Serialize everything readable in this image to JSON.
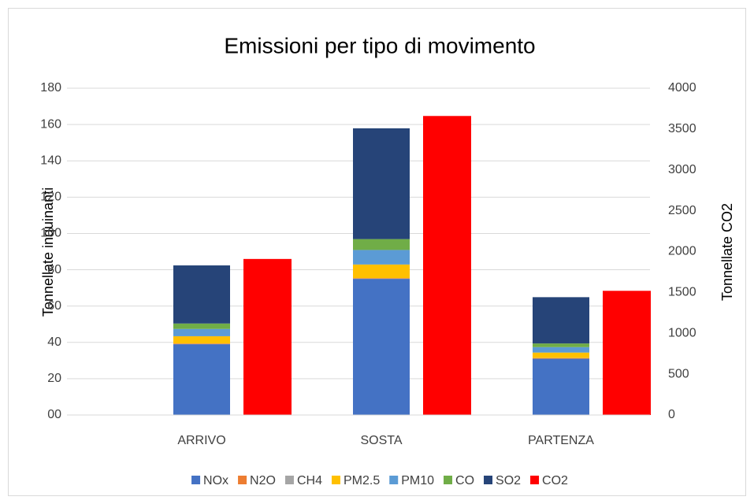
{
  "chart_data": {
    "type": "stacked_bar",
    "title": "Emissioni per tipo di movimento",
    "y_label": "Tonnellate inquinanti",
    "y2_label": "Tonnellate CO2",
    "categories": [
      "ARRIVO",
      "SOSTA",
      "PARTENZA"
    ],
    "series": [
      {
        "name": "NOx",
        "color": "#4472c4",
        "values": [
          39,
          75,
          31
        ]
      },
      {
        "name": "N2O",
        "color": "#ed7d31",
        "values": [
          0.3,
          0.3,
          0.3
        ]
      },
      {
        "name": "CH4",
        "color": "#a5a5a5",
        "values": [
          0.1,
          0.1,
          0.1
        ]
      },
      {
        "name": "PM2.5",
        "color": "#ffc000",
        "values": [
          4,
          7.5,
          3
        ]
      },
      {
        "name": "PM10",
        "color": "#5b9bd5",
        "values": [
          4,
          8,
          3
        ]
      },
      {
        "name": "CO",
        "color": "#70ad47",
        "values": [
          3,
          6,
          2
        ]
      },
      {
        "name": "SO2",
        "color": "#264478",
        "values": [
          32,
          61,
          25.5
        ]
      },
      {
        "name": "CO2",
        "color": "#ff0000",
        "values": [
          1910,
          3660,
          1520
        ],
        "axis": "y2"
      }
    ],
    "ylim": [
      0,
      180
    ],
    "yticks": [
      {
        "value": 0,
        "label": "00"
      },
      20,
      40,
      60,
      80,
      100,
      120,
      140,
      160,
      180
    ],
    "y2lim": [
      0,
      4000
    ],
    "y2ticks": [
      0,
      500,
      1000,
      1500,
      2000,
      2500,
      3000,
      3500,
      4000
    ],
    "grid": true,
    "legend": "bottom"
  }
}
